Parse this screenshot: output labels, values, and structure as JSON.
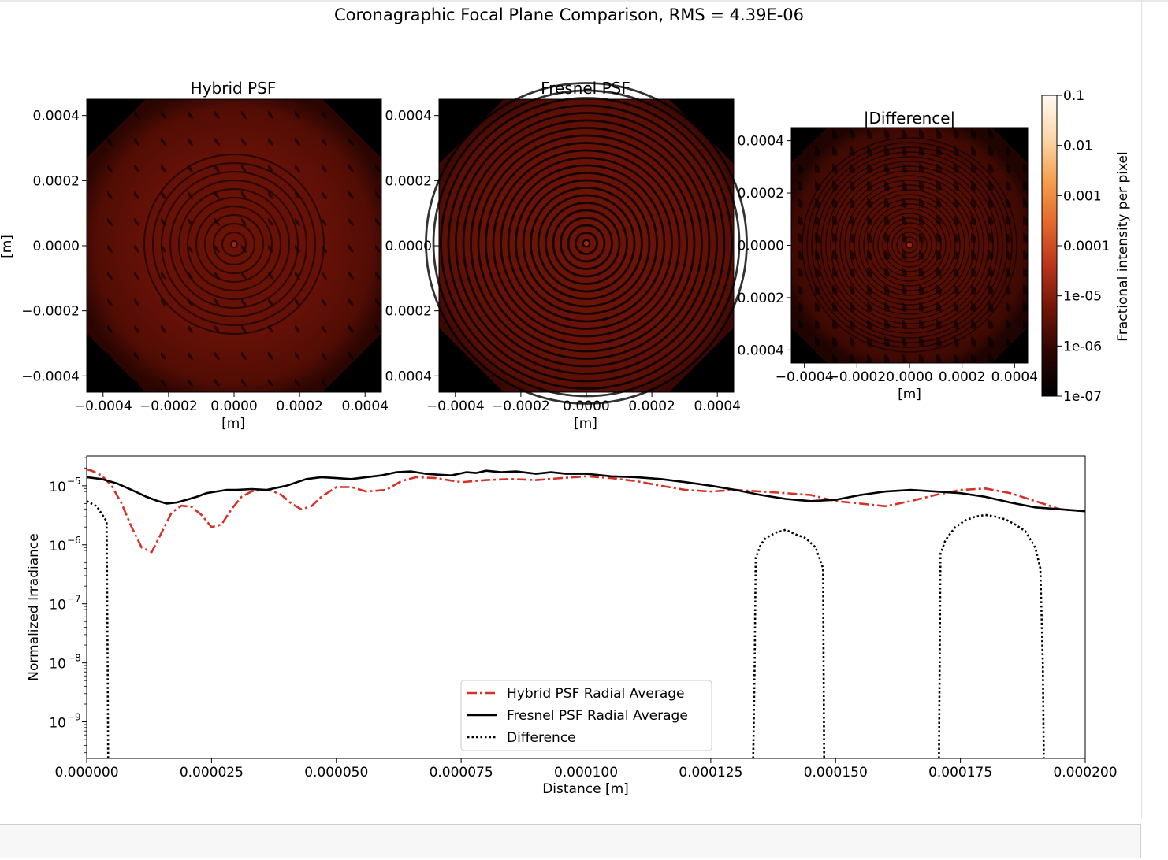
{
  "suptitle": "Coronagraphic Focal Plane Comparison, RMS = 4.39E-06",
  "colors": {
    "hybrid": "#d73027",
    "fresnel": "#000000",
    "difference": "#000000",
    "psf_base": "#5a0e05",
    "psf_bright": "#8c2410"
  },
  "chart_data": [
    {
      "type": "heatmap",
      "title": "Hybrid PSF",
      "xlabel": "[m]",
      "ylabel": "[m]",
      "xlim": [
        -0.00045,
        0.00045
      ],
      "ylim": [
        -0.00045,
        0.00045
      ],
      "xticks": [
        "−0.0004",
        "−0.0002",
        "0.0000",
        "0.0002",
        "0.0004"
      ],
      "yticks": [
        "0.0004",
        "0.0002",
        "0.0000",
        "−0.0002",
        "−0.0004"
      ]
    },
    {
      "type": "heatmap",
      "title": "Fresnel PSF",
      "xlabel": "[m]",
      "xlim": [
        -0.00045,
        0.00045
      ],
      "ylim": [
        -0.00045,
        0.00045
      ],
      "xticks": [
        "−0.0004",
        "−0.0002",
        "0.0000",
        "0.0002",
        "0.0004"
      ],
      "yticks": [
        "0.0004",
        "0.0002",
        "0.0000",
        "0.0002",
        "0.0004"
      ]
    },
    {
      "type": "heatmap",
      "title": "|Difference|",
      "xlabel": "[m]",
      "xlim": [
        -0.00045,
        0.00045
      ],
      "ylim": [
        -0.00045,
        0.00045
      ],
      "xticks": [
        "−0.0004",
        "−0.0002",
        "0.0000",
        "0.0002",
        "0.0004"
      ],
      "yticks": [
        "0.0004",
        "0.0002",
        "0.0000",
        "0.0002",
        "0.0004"
      ],
      "colorbar": {
        "label": "Fractional intensity per pixel",
        "scale": "log",
        "ticks": [
          "0.1",
          "0.01",
          "0.001",
          "0.0001",
          "1e-05",
          "1e-06",
          "1e-07"
        ],
        "colors": [
          "#000000",
          "#2a0502",
          "#6e1407",
          "#b8331a",
          "#e3662a",
          "#f59f4e",
          "#fbd7a8",
          "#fffaf3"
        ]
      }
    },
    {
      "type": "line",
      "xlabel": "Distance [m]",
      "ylabel": "Normalized Irradiance",
      "yscale": "log",
      "xlim": [
        0,
        0.0002
      ],
      "ylim": [
        2.4e-10,
        3.2e-05
      ],
      "xticks": [
        "0.000000",
        "0.000025",
        "0.000050",
        "0.000075",
        "0.000100",
        "0.000125",
        "0.000150",
        "0.000175",
        "0.000200"
      ],
      "yticks": [
        {
          "base": "10",
          "exp": "−5"
        },
        {
          "base": "10",
          "exp": "−6"
        },
        {
          "base": "10",
          "exp": "−7"
        },
        {
          "base": "10",
          "exp": "−8"
        },
        {
          "base": "10",
          "exp": "−9"
        }
      ],
      "legend_position": "lower-center",
      "series": [
        {
          "name": "Hybrid PSF Radial Average",
          "style": "dashdot",
          "x": [
            0,
            1e-06,
            3e-06,
            5e-06,
            7e-06,
            9e-06,
            1.1e-05,
            1.3e-05,
            1.5e-05,
            1.7e-05,
            1.9e-05,
            2.1e-05,
            2.3e-05,
            2.5e-05,
            2.7e-05,
            2.9e-05,
            3.1e-05,
            3.3e-05,
            3.5e-05,
            3.7e-05,
            3.9e-05,
            4.1e-05,
            4.3e-05,
            4.5e-05,
            4.7e-05,
            5e-05,
            5.3e-05,
            5.6e-05,
            6e-05,
            6.3e-05,
            6.6e-05,
            7e-05,
            7.5e-05,
            8e-05,
            8.5e-05,
            9e-05,
            9.5e-05,
            0.0001,
            0.000105,
            0.00011,
            0.000115,
            0.00012,
            0.000125,
            0.00013,
            0.000135,
            0.00014,
            0.000145,
            0.00015,
            0.000155,
            0.00016,
            0.000165,
            0.00017,
            0.000175,
            0.00018,
            0.000185,
            0.00019,
            0.000195,
            0.0002
          ],
          "y": [
            1.9e-05,
            1.8e-05,
            1.5e-05,
            1e-05,
            5e-06,
            2e-06,
            9e-07,
            7.5e-07,
            1.6e-06,
            3.5e-06,
            4.6e-06,
            4.4e-06,
            3.2e-06,
            2e-06,
            2.2e-06,
            4e-06,
            6.5e-06,
            8e-06,
            8.5e-06,
            8.3e-06,
            7e-06,
            5e-06,
            4e-06,
            4.5e-06,
            6.5e-06,
            9.5e-06,
            9.5e-06,
            8e-06,
            8.5e-06,
            1.2e-05,
            1.4e-05,
            1.35e-05,
            1.15e-05,
            1.25e-05,
            1.3e-05,
            1.25e-05,
            1.35e-05,
            1.45e-05,
            1.35e-05,
            1.2e-05,
            1e-05,
            8.5e-06,
            8e-06,
            8.5e-06,
            8e-06,
            7.5e-06,
            7e-06,
            5.5e-06,
            5e-06,
            4.5e-06,
            5.5e-06,
            7e-06,
            8.5e-06,
            9e-06,
            7.5e-06,
            5.5e-06,
            4e-06,
            3.7e-06
          ]
        },
        {
          "name": "Fresnel PSF Radial Average",
          "style": "solid",
          "x": [
            0,
            3e-06,
            6e-06,
            9e-06,
            1.2e-05,
            1.4e-05,
            1.6e-05,
            1.8e-05,
            2e-05,
            2.2e-05,
            2.4e-05,
            2.6e-05,
            2.8e-05,
            3e-05,
            3.3e-05,
            3.6e-05,
            4e-05,
            4.4e-05,
            4.7e-05,
            5e-05,
            5.3e-05,
            5.6e-05,
            5.9e-05,
            6.2e-05,
            6.5e-05,
            6.8e-05,
            7e-05,
            7.3e-05,
            7.6e-05,
            7.8e-05,
            8e-05,
            8.3e-05,
            8.6e-05,
            9e-05,
            9.3e-05,
            9.6e-05,
            0.0001,
            0.000105,
            0.00011,
            0.000115,
            0.00012,
            0.000125,
            0.00013,
            0.000135,
            0.00014,
            0.000145,
            0.00015,
            0.000155,
            0.00016,
            0.000165,
            0.00017,
            0.000175,
            0.00018,
            0.000185,
            0.00019,
            0.000195,
            0.0002
          ],
          "y": [
            1.4e-05,
            1.3e-05,
            1.1e-05,
            8.5e-06,
            6.5e-06,
            5.6e-06,
            5e-06,
            5.2e-06,
            5.8e-06,
            6.5e-06,
            7.5e-06,
            8e-06,
            8.5e-06,
            8.5e-06,
            8.8e-06,
            8.5e-06,
            1e-05,
            1.3e-05,
            1.4e-05,
            1.35e-05,
            1.3e-05,
            1.4e-05,
            1.5e-05,
            1.7e-05,
            1.75e-05,
            1.6e-05,
            1.55e-05,
            1.5e-05,
            1.7e-05,
            1.65e-05,
            1.8e-05,
            1.7e-05,
            1.75e-05,
            1.6e-05,
            1.7e-05,
            1.6e-05,
            1.6e-05,
            1.45e-05,
            1.4e-05,
            1.3e-05,
            1.15e-05,
            1e-05,
            8.5e-06,
            7e-06,
            6e-06,
            5.5e-06,
            5.8e-06,
            7e-06,
            8e-06,
            8.5e-06,
            8e-06,
            7.5e-06,
            6.5e-06,
            5.2e-06,
            4.3e-06,
            4e-06,
            3.7e-06
          ]
        },
        {
          "name": "Difference",
          "style": "dotted",
          "x": [
            0,
            2e-06,
            4e-06,
            4.2e-06,
            4.3e-06,
            null,
            0.0001335,
            0.0001338,
            0.000134,
            0.000135,
            0.000136,
            0.000138,
            0.00014,
            0.000142,
            0.000144,
            0.000146,
            0.0001475,
            0.0001476,
            0.0001477,
            null,
            0.0001707,
            0.000171,
            0.000172,
            0.000174,
            0.000176,
            0.000178,
            0.00018,
            0.000182,
            0.000184,
            0.000186,
            0.000188,
            0.00019,
            0.000191,
            0.0001915,
            0.0001917
          ],
          "y": [
            5.5e-06,
            4.5e-06,
            2.5e-06,
            1e-08,
            2.4e-10,
            null,
            2.4e-10,
            1e-08,
            6e-07,
            1e-06,
            1.3e-06,
            1.6e-06,
            1.8e-06,
            1.5e-06,
            1.3e-06,
            9e-07,
            4e-07,
            1e-08,
            2.4e-10,
            null,
            2.4e-10,
            7e-07,
            1.2e-06,
            2e-06,
            2.6e-06,
            3e-06,
            3.2e-06,
            3e-06,
            2.7e-06,
            2.2e-06,
            1.7e-06,
            9e-07,
            4e-07,
            1e-08,
            2.4e-10
          ]
        }
      ]
    }
  ]
}
